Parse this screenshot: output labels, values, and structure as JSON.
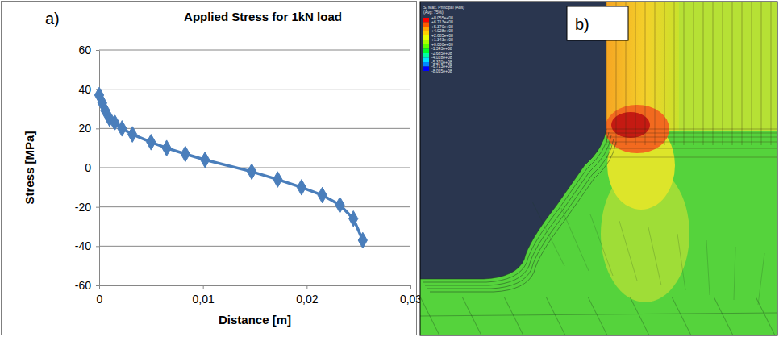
{
  "chart_data": {
    "type": "line",
    "panel_label": "a)",
    "title": "Applied Stress for 1kN load",
    "x_label": "Distance [m]",
    "y_label": "Stress [MPa]",
    "x": [
      0,
      0.0003,
      0.0006,
      0.001,
      0.0015,
      0.0022,
      0.0032,
      0.005,
      0.0065,
      0.0083,
      0.0102,
      0.0147,
      0.0172,
      0.0195,
      0.0215,
      0.0232,
      0.0245,
      0.0254
    ],
    "values": [
      37,
      33,
      29,
      25,
      23,
      20,
      17,
      13,
      10,
      7,
      4,
      -2,
      -6,
      -10,
      -14,
      -19,
      -26,
      -37
    ],
    "color": "#4a7ebb",
    "marker": "diamond",
    "line_style": "solid",
    "xlim": [
      0,
      0.03
    ],
    "xticks": [
      0,
      {
        "value": 0.01,
        "label": "0,01"
      },
      {
        "value": 0.02,
        "label": "0,02"
      },
      {
        "value": 0.03,
        "label": "0,03"
      }
    ],
    "ylim": [
      -60,
      60
    ],
    "yticks": [
      -60,
      -40,
      -20,
      0,
      20,
      40,
      60
    ],
    "grid": true
  },
  "fea_image": {
    "panel_label": "b)",
    "contour_legend": {
      "title": "S, Max. Principal (Abs)",
      "subtitle": "(Avg: 75%)",
      "levels": [
        {
          "value": 805500000,
          "label": "+8.055e+08"
        },
        {
          "value": 671300000,
          "label": "+6.713e+08"
        },
        {
          "value": 537000000,
          "label": "+5.370e+08"
        },
        {
          "value": 402800000,
          "label": "+4.028e+08"
        },
        {
          "value": 268500000,
          "label": "+2.685e+08"
        },
        {
          "value": 134300000,
          "label": "+1.343e+08"
        },
        {
          "value": 0,
          "label": "+0.000e+00"
        },
        {
          "value": -134300000,
          "label": "-1.343e+08"
        },
        {
          "value": -268500000,
          "label": "-2.685e+08"
        },
        {
          "value": -402800000,
          "label": "-4.028e+08"
        },
        {
          "value": -537000000,
          "label": "-5.370e+08"
        },
        {
          "value": -671300000,
          "label": "-6.713e+08"
        },
        {
          "value": -805500000,
          "label": "-8.055e+08"
        }
      ],
      "colors": [
        "#ff0000",
        "#ff5a00",
        "#ffa600",
        "#ffd000",
        "#e9ff00",
        "#a8ff00",
        "#5cff00",
        "#00ff2a",
        "#00ffa2",
        "#00e4ff",
        "#0088ff",
        "#0000ff"
      ]
    }
  }
}
